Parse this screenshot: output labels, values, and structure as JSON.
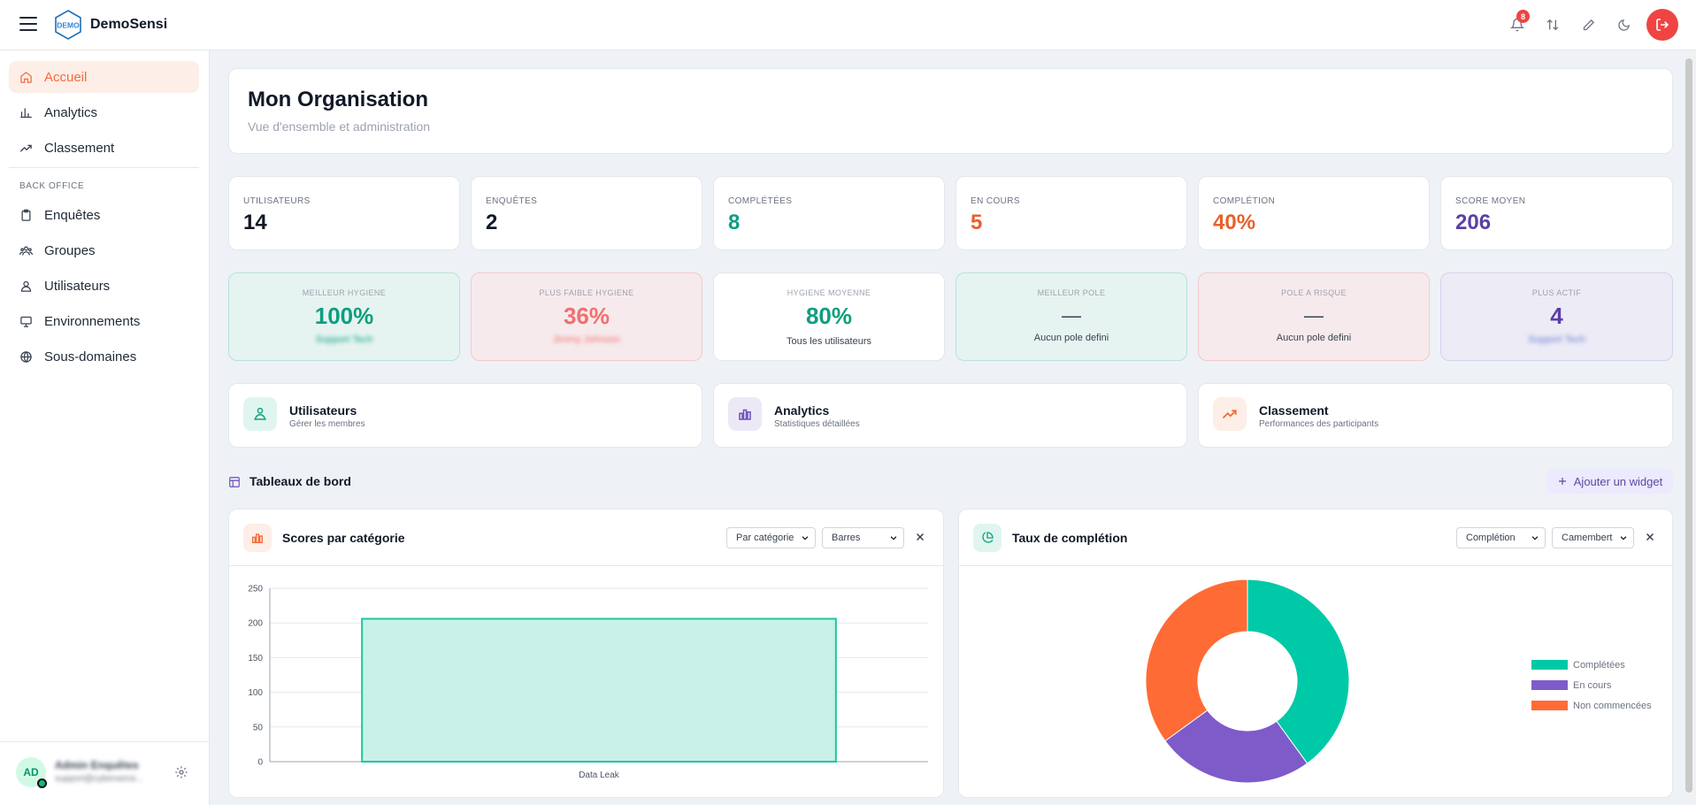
{
  "app": {
    "title": "DemoSensi",
    "logo_text": "DEMO"
  },
  "topbar": {
    "notification_count": "8"
  },
  "sidebar": {
    "main_items": [
      {
        "label": "Accueil",
        "icon": "home-icon",
        "active": true
      },
      {
        "label": "Analytics",
        "icon": "bar-chart-icon"
      },
      {
        "label": "Classement",
        "icon": "trending-up-icon"
      }
    ],
    "section_label": "BACK OFFICE",
    "office_items": [
      {
        "label": "Enquêtes",
        "icon": "clipboard-icon"
      },
      {
        "label": "Groupes",
        "icon": "users-group-icon"
      },
      {
        "label": "Utilisateurs",
        "icon": "user-icon"
      },
      {
        "label": "Environnements",
        "icon": "monitor-icon"
      },
      {
        "label": "Sous-domaines",
        "icon": "globe-icon"
      }
    ],
    "user": {
      "initials": "AD",
      "name": "Admin Enquêtes",
      "email": "support@cybersensi..."
    }
  },
  "header": {
    "title": "Mon Organisation",
    "subtitle": "Vue d'ensemble et administration"
  },
  "stats": [
    {
      "label": "UTILISATEURS",
      "value": "14",
      "color": "#111827"
    },
    {
      "label": "ENQUÊTES",
      "value": "2",
      "color": "#111827"
    },
    {
      "label": "COMPLÉTÉES",
      "value": "8",
      "color": "#0e9e7f"
    },
    {
      "label": "EN COURS",
      "value": "5",
      "color": "#e8602c"
    },
    {
      "label": "COMPLÉTION",
      "value": "40%",
      "color": "#e8602c"
    },
    {
      "label": "SCORE MOYEN",
      "value": "206",
      "color": "#5b3fa6"
    }
  ],
  "hygiene": [
    {
      "label": "MEILLEUR HYGIENE",
      "value": "100%",
      "sub": "Support Tech",
      "color": "#0e9e7f",
      "bg": "#e6f4f1",
      "border": "#b7e3d8",
      "sub_blur": true
    },
    {
      "label": "PLUS FAIBLE HYGIENE",
      "value": "36%",
      "sub": "Jimmy Johnson",
      "color": "#f07070",
      "bg": "#f7eaec",
      "border": "#f3c9cd",
      "sub_blur": true
    },
    {
      "label": "HYGIENE MOYENNE",
      "value": "80%",
      "sub": "Tous les utilisateurs",
      "color": "#0e9e7f",
      "bg": "#ffffff",
      "border": "#e5e7eb",
      "sub_blur": false
    },
    {
      "label": "MEILLEUR POLE",
      "value": "—",
      "sub": "Aucun pole defini",
      "color": "#374151",
      "bg": "#e6f4f1",
      "border": "#b7e3d8",
      "sub_blur": false
    },
    {
      "label": "POLE A RISQUE",
      "value": "—",
      "sub": "Aucun pole defini",
      "color": "#374151",
      "bg": "#f7eaec",
      "border": "#f3c9cd",
      "sub_blur": false
    },
    {
      "label": "PLUS ACTIF",
      "value": "4",
      "sub": "Support Tech",
      "color": "#5b3fa6",
      "bg": "#ecebf6",
      "border": "#d6d2ee",
      "sub_blur": true
    }
  ],
  "quick_links": [
    {
      "title": "Utilisateurs",
      "sub": "Gérer les membres",
      "icon": "users-icon",
      "bg": "#e0f5f0",
      "color": "#10a37f"
    },
    {
      "title": "Analytics",
      "sub": "Statistiques détaillées",
      "icon": "bar-chart-icon",
      "bg": "#ece9f7",
      "color": "#6b4fb8"
    },
    {
      "title": "Classement",
      "sub": "Performances des participants",
      "icon": "trending-up-icon",
      "bg": "#fdeee8",
      "color": "#f26b3a"
    }
  ],
  "dashboards": {
    "title": "Tableaux de bord",
    "add_button": "Ajouter un widget",
    "widgets": [
      {
        "title": "Scores par catégorie",
        "select1": "Par catégorie",
        "select2": "Barres"
      },
      {
        "title": "Taux de complétion",
        "select1": "Complétion",
        "select2": "Camembert"
      }
    ]
  },
  "chart_data": [
    {
      "type": "bar",
      "title": "Scores par catégorie",
      "categories": [
        "Data Leak"
      ],
      "values": [
        206
      ],
      "ylim": [
        0,
        250
      ],
      "yticks": [
        "0",
        "50",
        "100",
        "150",
        "200",
        "250"
      ],
      "xlabel": "",
      "ylabel": "",
      "grid": true,
      "colors": {
        "fill": "#c9f1e8",
        "stroke": "#1cc6a0"
      }
    },
    {
      "type": "pie",
      "title": "Taux de complétion",
      "labels": [
        "Complétées",
        "En cours",
        "Non commencées"
      ],
      "values": [
        8,
        5,
        7
      ],
      "colors": [
        "#00c9a7",
        "#7e5bc9",
        "#ff6b35"
      ],
      "legend": "right"
    }
  ]
}
